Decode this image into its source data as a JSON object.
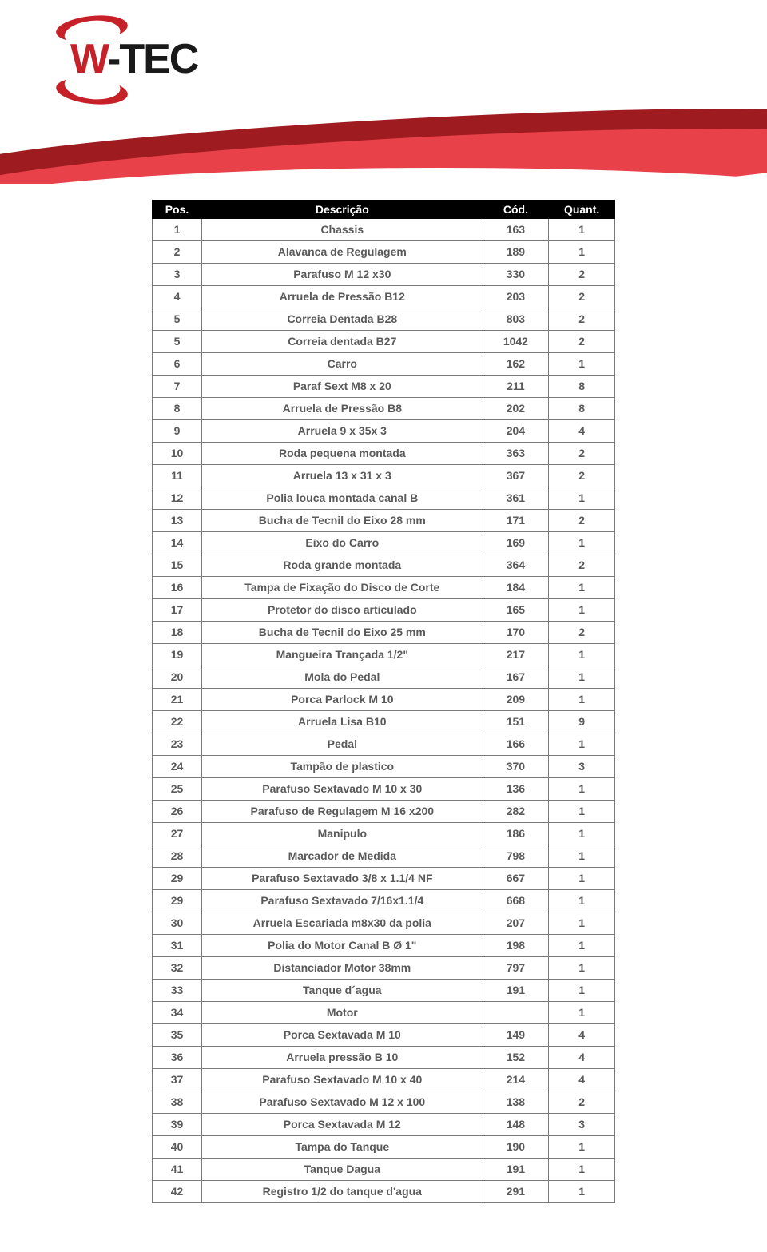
{
  "brand": {
    "name_prefix": "W",
    "name_rest": "-TEC",
    "brand_color": "#c62128",
    "brand_color_light": "#e8414a",
    "brand_color_dark": "#9e1b20"
  },
  "table": {
    "headers": {
      "pos": "Pos.",
      "desc": "Descrição",
      "cod": "Cód.",
      "qty": "Quant."
    },
    "header_bg": "#000000",
    "header_fg": "#ffffff",
    "cell_border": "#7a7a7a",
    "cell_fg": "#5a5a5a",
    "rows": [
      {
        "pos": "1",
        "desc": "Chassis",
        "cod": "163",
        "qty": "1"
      },
      {
        "pos": "2",
        "desc": "Alavanca de Regulagem",
        "cod": "189",
        "qty": "1"
      },
      {
        "pos": "3",
        "desc": "Parafuso M 12 x30",
        "cod": "330",
        "qty": "2"
      },
      {
        "pos": "4",
        "desc": "Arruela de Pressão B12",
        "cod": "203",
        "qty": "2"
      },
      {
        "pos": "5",
        "desc": "Correia Dentada B28",
        "cod": "803",
        "qty": "2"
      },
      {
        "pos": "5",
        "desc": "Correia dentada B27",
        "cod": "1042",
        "qty": "2"
      },
      {
        "pos": "6",
        "desc": "Carro",
        "cod": "162",
        "qty": "1"
      },
      {
        "pos": "7",
        "desc": "Paraf Sext M8 x 20",
        "cod": "211",
        "qty": "8"
      },
      {
        "pos": "8",
        "desc": "Arruela de Pressão B8",
        "cod": "202",
        "qty": "8"
      },
      {
        "pos": "9",
        "desc": "Arruela 9 x 35x 3",
        "cod": "204",
        "qty": "4"
      },
      {
        "pos": "10",
        "desc": "Roda pequena montada",
        "cod": "363",
        "qty": "2"
      },
      {
        "pos": "11",
        "desc": "Arruela 13 x 31 x 3",
        "cod": "367",
        "qty": "2"
      },
      {
        "pos": "12",
        "desc": "Polia louca montada canal B",
        "cod": "361",
        "qty": "1"
      },
      {
        "pos": "13",
        "desc": "Bucha de Tecnil do Eixo 28 mm",
        "cod": "171",
        "qty": "2"
      },
      {
        "pos": "14",
        "desc": "Eixo do Carro",
        "cod": "169",
        "qty": "1"
      },
      {
        "pos": "15",
        "desc": "Roda grande montada",
        "cod": "364",
        "qty": "2"
      },
      {
        "pos": "16",
        "desc": "Tampa de Fixação do Disco de Corte",
        "cod": "184",
        "qty": "1"
      },
      {
        "pos": "17",
        "desc": "Protetor do disco articulado",
        "cod": "165",
        "qty": "1"
      },
      {
        "pos": "18",
        "desc": "Bucha de Tecnil do Eixo 25 mm",
        "cod": "170",
        "qty": "2"
      },
      {
        "pos": "19",
        "desc": "Mangueira Trançada 1/2\"",
        "cod": "217",
        "qty": "1"
      },
      {
        "pos": "20",
        "desc": "Mola do Pedal",
        "cod": "167",
        "qty": "1"
      },
      {
        "pos": "21",
        "desc": "Porca Parlock M 10",
        "cod": "209",
        "qty": "1"
      },
      {
        "pos": "22",
        "desc": "Arruela Lisa B10",
        "cod": "151",
        "qty": "9"
      },
      {
        "pos": "23",
        "desc": "Pedal",
        "cod": "166",
        "qty": "1"
      },
      {
        "pos": "24",
        "desc": "Tampão de plastico",
        "cod": "370",
        "qty": "3"
      },
      {
        "pos": "25",
        "desc": "Parafuso Sextavado M 10 x 30",
        "cod": "136",
        "qty": "1"
      },
      {
        "pos": "26",
        "desc": "Parafuso de Regulagem M 16 x200",
        "cod": "282",
        "qty": "1"
      },
      {
        "pos": "27",
        "desc": "Manipulo",
        "cod": "186",
        "qty": "1"
      },
      {
        "pos": "28",
        "desc": "Marcador de Medida",
        "cod": "798",
        "qty": "1"
      },
      {
        "pos": "29",
        "desc": "Parafuso Sextavado 3/8 x 1.1/4 NF",
        "cod": "667",
        "qty": "1"
      },
      {
        "pos": "29",
        "desc": "Parafuso Sextavado 7/16x1.1/4",
        "cod": "668",
        "qty": "1"
      },
      {
        "pos": "30",
        "desc": "Arruela Escariada m8x30 da polia",
        "cod": "207",
        "qty": "1"
      },
      {
        "pos": "31",
        "desc": "Polia do Motor Canal B Ø 1\"",
        "cod": "198",
        "qty": "1"
      },
      {
        "pos": "32",
        "desc": "Distanciador Motor 38mm",
        "cod": "797",
        "qty": "1"
      },
      {
        "pos": "33",
        "desc": "Tanque d´agua",
        "cod": "191",
        "qty": "1"
      },
      {
        "pos": "34",
        "desc": "Motor",
        "cod": "",
        "qty": "1"
      },
      {
        "pos": "35",
        "desc": "Porca Sextavada M 10",
        "cod": "149",
        "qty": "4"
      },
      {
        "pos": "36",
        "desc": "Arruela pressão B 10",
        "cod": "152",
        "qty": "4"
      },
      {
        "pos": "37",
        "desc": "Parafuso Sextavado M 10 x 40",
        "cod": "214",
        "qty": "4"
      },
      {
        "pos": "38",
        "desc": "Parafuso Sextavado M 12 x 100",
        "cod": "138",
        "qty": "2"
      },
      {
        "pos": "39",
        "desc": "Porca Sextavada M 12",
        "cod": "148",
        "qty": "3"
      },
      {
        "pos": "40",
        "desc": "Tampa do Tanque",
        "cod": "190",
        "qty": "1"
      },
      {
        "pos": "41",
        "desc": "Tanque Dagua",
        "cod": "191",
        "qty": "1"
      },
      {
        "pos": "42",
        "desc": "Registro 1/2 do tanque d'agua",
        "cod": "291",
        "qty": "1"
      }
    ]
  }
}
